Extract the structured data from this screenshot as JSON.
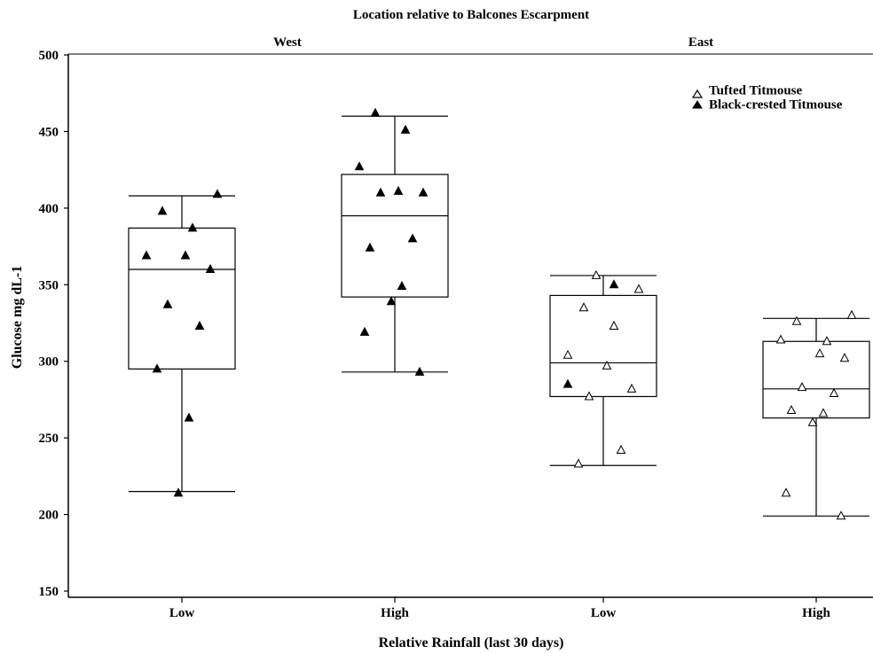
{
  "chart_data": {
    "type": "box",
    "title": "Location relative to Balcones Escarpment",
    "group_labels": [
      "West",
      "East"
    ],
    "xlabel": "Relative Rainfall (last 30 days)",
    "ylabel": "Glucose mg dL-1",
    "ylim": [
      150,
      500
    ],
    "yticks": [
      150,
      200,
      250,
      300,
      350,
      400,
      450,
      500
    ],
    "categories": [
      "Low",
      "High",
      "Low",
      "High"
    ],
    "legend": {
      "position": "top-right",
      "entries": [
        {
          "name": "Tufted Titmouse",
          "marker": "open-triangle"
        },
        {
          "name": "Black-crested Titmouse",
          "marker": "filled-triangle"
        }
      ]
    },
    "boxes": [
      {
        "group": "West",
        "category": "Low",
        "min": 215,
        "q1": 295,
        "median": 360,
        "q3": 387,
        "max": 408
      },
      {
        "group": "West",
        "category": "High",
        "min": 293,
        "q1": 342,
        "median": 395,
        "q3": 422,
        "max": 460
      },
      {
        "group": "East",
        "category": "Low",
        "min": 232,
        "q1": 277,
        "median": 299,
        "q3": 343,
        "max": 356
      },
      {
        "group": "East",
        "category": "High",
        "min": 199,
        "q1": 263,
        "median": 282,
        "q3": 313,
        "max": 328
      }
    ],
    "points": [
      {
        "box": 0,
        "series": "Black-crested Titmouse",
        "values": [
          409,
          398,
          387,
          369,
          369,
          360,
          337,
          323,
          295,
          263,
          214
        ]
      },
      {
        "box": 1,
        "series": "Black-crested Titmouse",
        "values": [
          462,
          451,
          427,
          411,
          410,
          410,
          380,
          374,
          349,
          339,
          319,
          293
        ]
      },
      {
        "box": 2,
        "series": "Tufted Titmouse",
        "values": [
          356,
          347,
          335,
          323,
          304,
          297,
          282,
          277,
          242,
          233
        ]
      },
      {
        "box": 2,
        "series": "Black-crested Titmouse",
        "values": [
          350,
          285
        ]
      },
      {
        "box": 3,
        "series": "Tufted Titmouse",
        "values": [
          330,
          326,
          313,
          314,
          305,
          302,
          283,
          279,
          268,
          266,
          260,
          214,
          199
        ]
      }
    ]
  }
}
